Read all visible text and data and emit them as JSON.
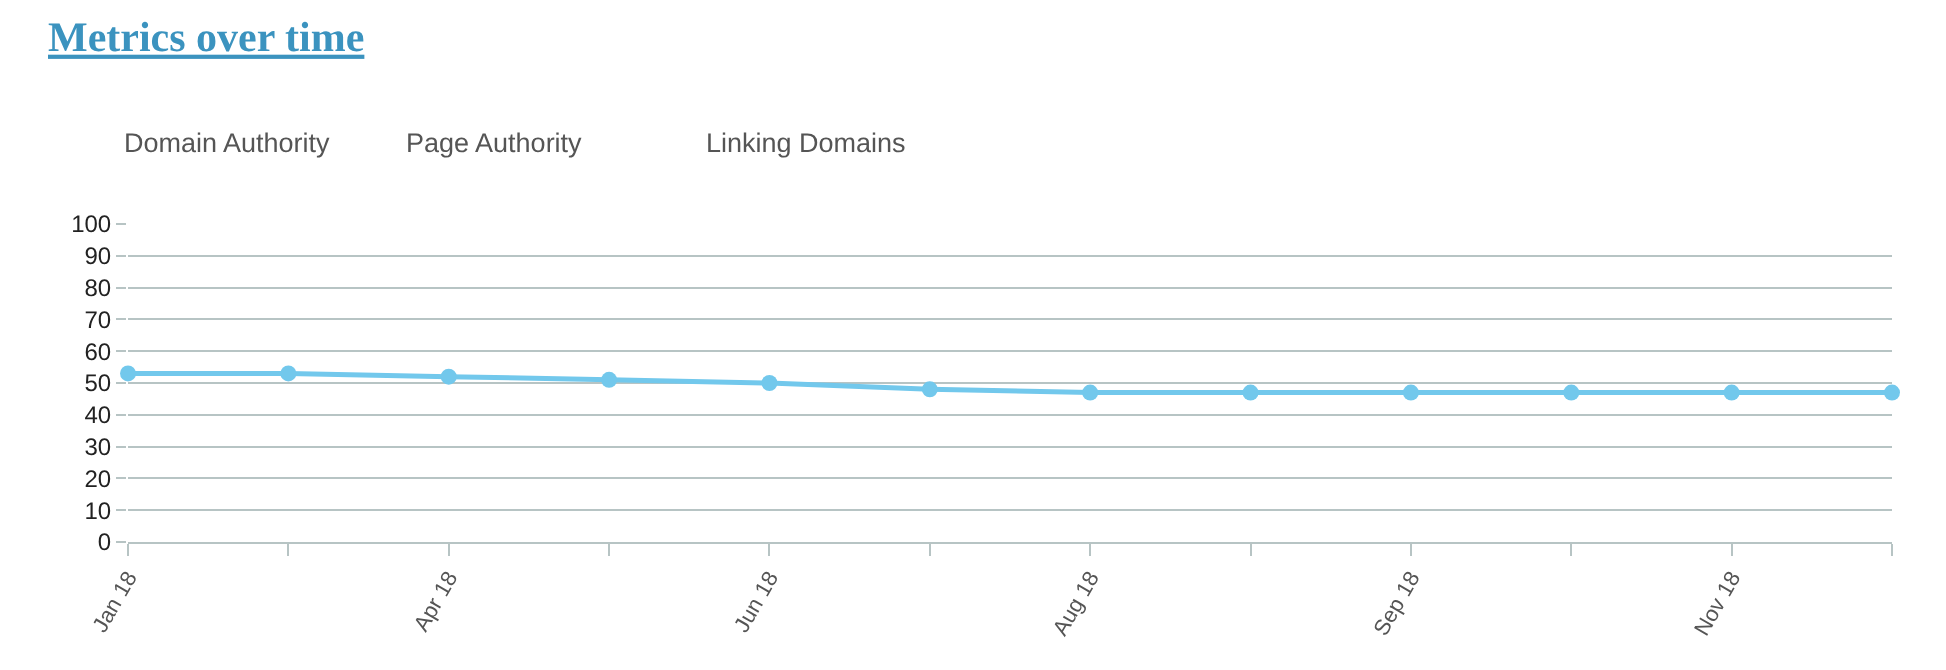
{
  "chart_data": {
    "type": "line",
    "title": "Metrics over time",
    "annotations": [
      "Domain Authority",
      "Page Authority",
      "Linking Domains"
    ],
    "categories": [
      "Jan 18",
      null,
      "Apr 18",
      null,
      "Jun 18",
      null,
      "Aug 18",
      null,
      "Sep 18",
      null,
      "Nov 18",
      null
    ],
    "series": [
      {
        "color": "#72c8ec",
        "values": [
          53,
          53,
          52,
          51,
          50,
          48,
          47,
          47,
          47,
          47,
          47,
          47
        ]
      }
    ],
    "ylim": [
      0,
      100
    ],
    "yticks": [
      0,
      10,
      20,
      30,
      40,
      50,
      60,
      70,
      80,
      90,
      100
    ],
    "grid": "y",
    "marker": "circle",
    "line_style": "solid",
    "legend": false
  }
}
